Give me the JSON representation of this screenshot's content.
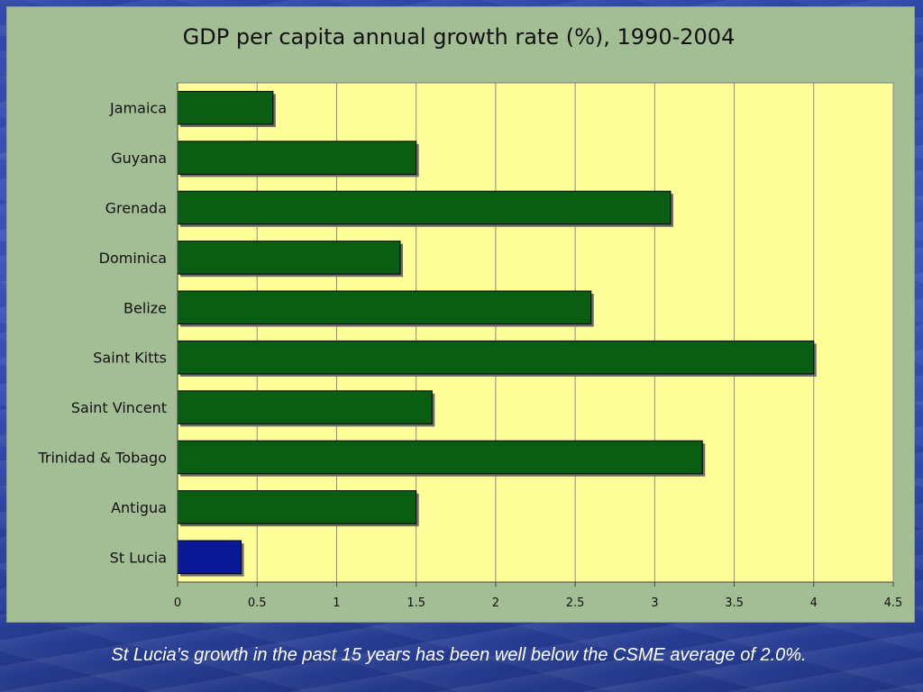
{
  "chart_data": {
    "type": "bar",
    "orientation": "horizontal",
    "title": "GDP per capita annual growth rate (%), 1990-2004",
    "categories": [
      "Jamaica",
      "Guyana",
      "Grenada",
      "Dominica",
      "Belize",
      "Saint Kitts",
      "Saint Vincent",
      "Trinidad & Tobago",
      "Antigua",
      "St Lucia"
    ],
    "values": [
      0.6,
      1.5,
      3.1,
      1.4,
      2.6,
      4.0,
      1.6,
      3.3,
      1.5,
      0.4
    ],
    "bar_colors": [
      "#0a5e14",
      "#0a5e14",
      "#0a5e14",
      "#0a5e14",
      "#0a5e14",
      "#0a5e14",
      "#0a5e14",
      "#0a5e14",
      "#0a5e14",
      "#0a1a96"
    ],
    "xlim": [
      0,
      4.5
    ],
    "xticks": [
      "0",
      "0.5",
      "1",
      "1.5",
      "2",
      "2.5",
      "3",
      "3.5",
      "4",
      "4.5"
    ],
    "grid": true,
    "plot_background": "#ffff99"
  },
  "caption": "St Lucia’s growth in the past 15 years has been well below the CSME average of 2.0%."
}
